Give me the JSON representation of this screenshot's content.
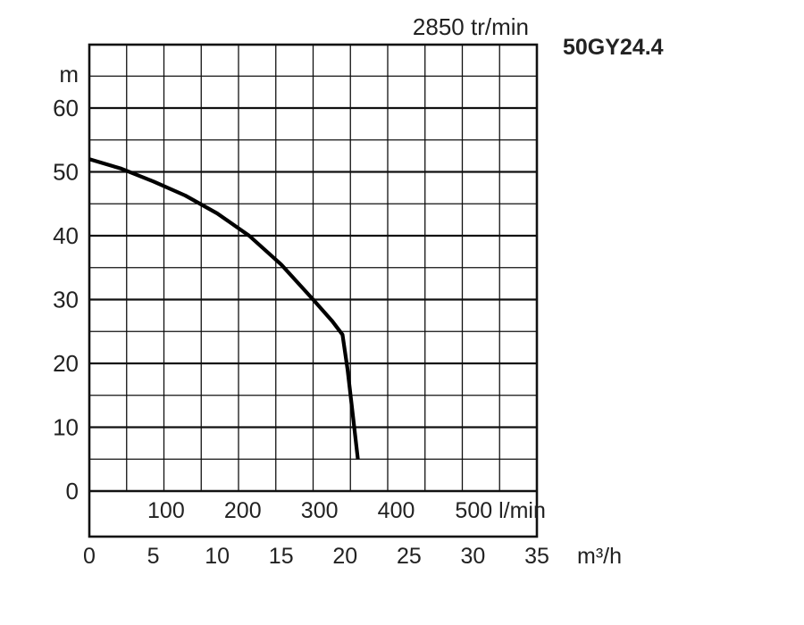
{
  "chart_data": {
    "type": "line",
    "title": "50GY24.4",
    "subtitle": "2850 tr/min",
    "ylabel": "m",
    "xlabel": "m³/h",
    "x2label": "l/min",
    "ylim": [
      0,
      60
    ],
    "xlim": [
      0,
      35
    ],
    "yticks": [
      "0",
      "10",
      "20",
      "30",
      "40",
      "50",
      "60"
    ],
    "xticks": [
      "0",
      "5",
      "10",
      "15",
      "20",
      "25",
      "30",
      "35"
    ],
    "x2ticks": [
      "100",
      "200",
      "300",
      "400",
      "500"
    ],
    "grid": true,
    "series": [
      {
        "x": [
          0,
          2.5,
          5,
          7.5,
          10,
          12.5,
          15,
          17.5,
          19.0,
          19.8,
          20.2,
          20.6,
          21.0
        ],
        "y": [
          52,
          50.5,
          48.5,
          46.3,
          43.5,
          40.0,
          35.5,
          30.0,
          26.6,
          24.5,
          19,
          12,
          5
        ]
      }
    ]
  }
}
